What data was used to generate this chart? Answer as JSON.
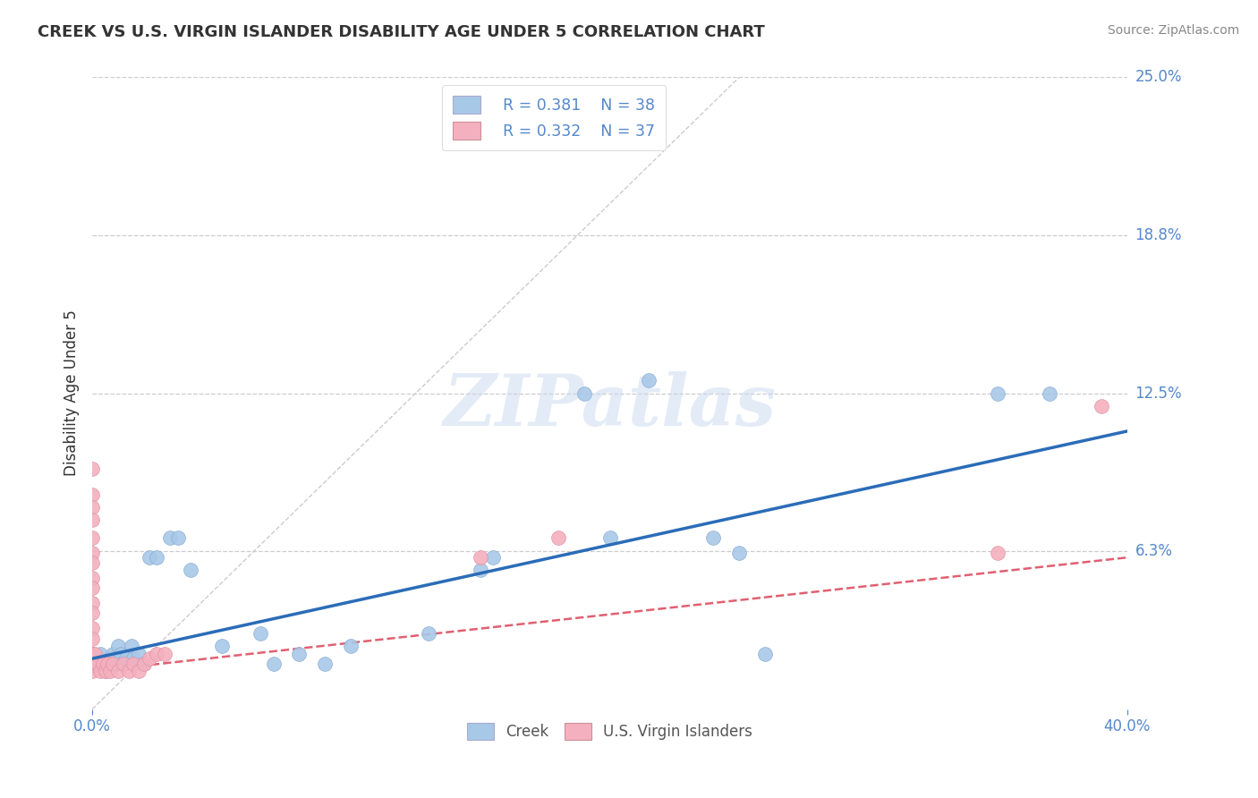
{
  "title": "CREEK VS U.S. VIRGIN ISLANDER DISABILITY AGE UNDER 5 CORRELATION CHART",
  "source": "Source: ZipAtlas.com",
  "ylabel": "Disability Age Under 5",
  "xmin": 0.0,
  "xmax": 0.4,
  "ymin": 0.0,
  "ymax": 0.25,
  "legend_r1": "R = 0.381",
  "legend_n1": "N = 38",
  "legend_r2": "R = 0.332",
  "legend_n2": "N = 37",
  "creek_color": "#a8c8e8",
  "usvi_color": "#f4b0be",
  "creek_line_color": "#2b6cb8",
  "usvi_line_color": "#e06070",
  "creek_scatter": [
    [
      0.0,
      0.022
    ],
    [
      0.002,
      0.018
    ],
    [
      0.003,
      0.022
    ],
    [
      0.005,
      0.015
    ],
    [
      0.006,
      0.018
    ],
    [
      0.007,
      0.02
    ],
    [
      0.008,
      0.022
    ],
    [
      0.009,
      0.018
    ],
    [
      0.01,
      0.025
    ],
    [
      0.011,
      0.022
    ],
    [
      0.012,
      0.018
    ],
    [
      0.013,
      0.02
    ],
    [
      0.015,
      0.025
    ],
    [
      0.016,
      0.02
    ],
    [
      0.018,
      0.022
    ],
    [
      0.02,
      0.018
    ],
    [
      0.022,
      0.06
    ],
    [
      0.025,
      0.06
    ],
    [
      0.03,
      0.068
    ],
    [
      0.033,
      0.068
    ],
    [
      0.038,
      0.055
    ],
    [
      0.05,
      0.025
    ],
    [
      0.065,
      0.03
    ],
    [
      0.07,
      0.018
    ],
    [
      0.08,
      0.022
    ],
    [
      0.09,
      0.018
    ],
    [
      0.1,
      0.025
    ],
    [
      0.13,
      0.03
    ],
    [
      0.15,
      0.055
    ],
    [
      0.155,
      0.06
    ],
    [
      0.19,
      0.125
    ],
    [
      0.2,
      0.068
    ],
    [
      0.215,
      0.13
    ],
    [
      0.24,
      0.068
    ],
    [
      0.25,
      0.062
    ],
    [
      0.26,
      0.022
    ],
    [
      0.35,
      0.125
    ],
    [
      0.37,
      0.125
    ]
  ],
  "usvi_scatter": [
    [
      0.0,
      0.095
    ],
    [
      0.0,
      0.085
    ],
    [
      0.0,
      0.08
    ],
    [
      0.0,
      0.075
    ],
    [
      0.0,
      0.068
    ],
    [
      0.0,
      0.062
    ],
    [
      0.0,
      0.058
    ],
    [
      0.0,
      0.052
    ],
    [
      0.0,
      0.048
    ],
    [
      0.0,
      0.042
    ],
    [
      0.0,
      0.038
    ],
    [
      0.0,
      0.032
    ],
    [
      0.0,
      0.028
    ],
    [
      0.0,
      0.022
    ],
    [
      0.0,
      0.018
    ],
    [
      0.0,
      0.015
    ],
    [
      0.001,
      0.022
    ],
    [
      0.002,
      0.018
    ],
    [
      0.003,
      0.015
    ],
    [
      0.004,
      0.018
    ],
    [
      0.005,
      0.015
    ],
    [
      0.006,
      0.018
    ],
    [
      0.007,
      0.015
    ],
    [
      0.008,
      0.018
    ],
    [
      0.01,
      0.015
    ],
    [
      0.012,
      0.018
    ],
    [
      0.014,
      0.015
    ],
    [
      0.016,
      0.018
    ],
    [
      0.018,
      0.015
    ],
    [
      0.02,
      0.018
    ],
    [
      0.022,
      0.02
    ],
    [
      0.025,
      0.022
    ],
    [
      0.028,
      0.022
    ],
    [
      0.15,
      0.06
    ],
    [
      0.18,
      0.068
    ],
    [
      0.35,
      0.062
    ],
    [
      0.39,
      0.12
    ]
  ],
  "creek_trendline_x": [
    0.0,
    0.4
  ],
  "creek_trendline_y": [
    0.02,
    0.11
  ],
  "usvi_trendline_x": [
    0.0,
    0.4
  ],
  "usvi_trendline_y": [
    0.015,
    0.06
  ],
  "diag_line_x": [
    0.0,
    0.25
  ],
  "diag_line_y": [
    0.0,
    0.25
  ],
  "watermark": "ZIPatlas",
  "background_color": "#ffffff",
  "grid_color": "#cccccc",
  "ytick_positions": [
    0.0625,
    0.125,
    0.1875,
    0.25
  ],
  "ytick_labels": [
    "6.3%",
    "12.5%",
    "18.8%",
    "25.0%"
  ],
  "xtick_positions": [
    0.0,
    0.4
  ],
  "xtick_labels": [
    "0.0%",
    "40.0%"
  ],
  "tick_color": "#5588cc"
}
